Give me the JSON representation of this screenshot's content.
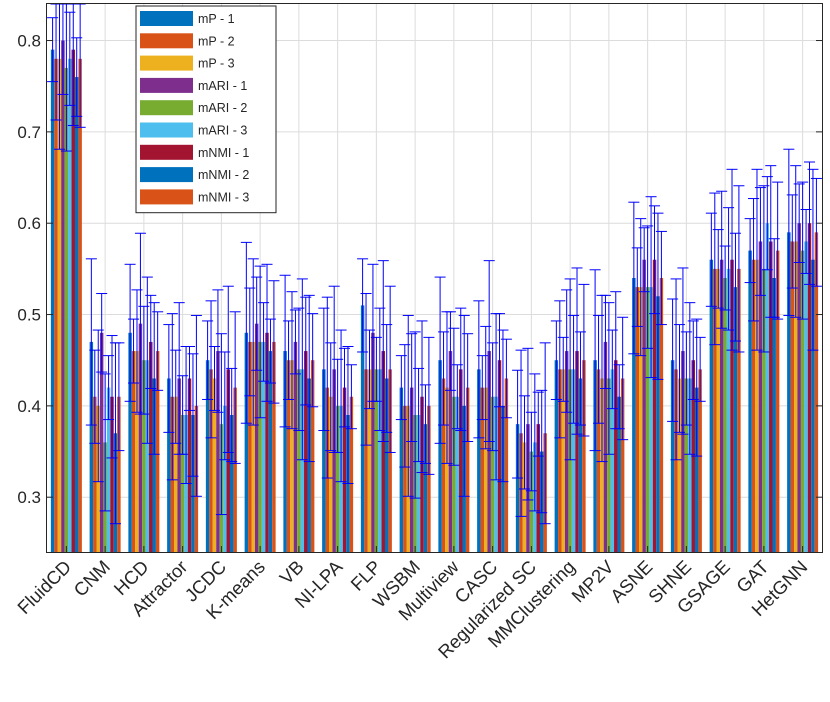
{
  "chart_data": {
    "type": "bar",
    "title": "",
    "xlabel": "",
    "ylabel": "",
    "ylim": [
      0.24,
      0.84
    ],
    "yticks": [
      "0.3",
      "0.4",
      "0.5",
      "0.6",
      "0.7",
      "0.8"
    ],
    "grid": true,
    "legend_position": "top-left",
    "categories": [
      "FluidCD",
      "CNM",
      "HCD",
      "Attractor",
      "JCDC",
      "K-means",
      "VB",
      "NI-LPA",
      "FLP",
      "WSBM",
      "Multiview",
      "CASC",
      "Regularized SC",
      "MMClustering",
      "MP2V",
      "ASNE",
      "SHNE",
      "GSAGE",
      "GAT",
      "HetGNN"
    ],
    "series": [
      {
        "name": "mP - 1",
        "color": "#0072BD",
        "values": [
          0.79,
          0.47,
          0.48,
          0.43,
          0.45,
          0.48,
          0.46,
          0.44,
          0.51,
          0.42,
          0.45,
          0.44,
          0.38,
          0.45,
          0.45,
          0.54,
          0.45,
          0.56,
          0.57,
          0.59
        ]
      },
      {
        "name": "mP - 2",
        "color": "#D95319",
        "values": [
          0.78,
          0.41,
          0.46,
          0.41,
          0.44,
          0.47,
          0.45,
          0.42,
          0.44,
          0.4,
          0.43,
          0.42,
          0.37,
          0.44,
          0.44,
          0.53,
          0.44,
          0.55,
          0.56,
          0.58
        ]
      },
      {
        "name": "mP - 3",
        "color": "#EDB120",
        "values": [
          0.78,
          0.4,
          0.46,
          0.41,
          0.43,
          0.47,
          0.45,
          0.41,
          0.44,
          0.4,
          0.42,
          0.42,
          0.36,
          0.44,
          0.43,
          0.53,
          0.43,
          0.55,
          0.56,
          0.58
        ]
      },
      {
        "name": "mARI - 1",
        "color": "#7E2F8E",
        "values": [
          0.8,
          0.48,
          0.49,
          0.43,
          0.46,
          0.49,
          0.47,
          0.44,
          0.48,
          0.42,
          0.46,
          0.46,
          0.38,
          0.46,
          0.47,
          0.56,
          0.46,
          0.56,
          0.58,
          0.6
        ]
      },
      {
        "name": "mARI - 2",
        "color": "#77AC30",
        "values": [
          0.77,
          0.36,
          0.45,
          0.39,
          0.38,
          0.47,
          0.44,
          0.4,
          0.44,
          0.39,
          0.41,
          0.41,
          0.35,
          0.44,
          0.43,
          0.53,
          0.43,
          0.54,
          0.55,
          0.57
        ]
      },
      {
        "name": "mARI - 3",
        "color": "#4DBEEE",
        "values": [
          0.78,
          0.42,
          0.45,
          0.39,
          0.4,
          0.47,
          0.44,
          0.4,
          0.44,
          0.39,
          0.41,
          0.41,
          0.36,
          0.44,
          0.44,
          0.53,
          0.43,
          0.55,
          0.6,
          0.58
        ]
      },
      {
        "name": "mNMI - 1",
        "color": "#A2142F",
        "values": [
          0.79,
          0.41,
          0.47,
          0.43,
          0.44,
          0.48,
          0.46,
          0.42,
          0.46,
          0.41,
          0.44,
          0.45,
          0.38,
          0.46,
          0.45,
          0.56,
          0.45,
          0.56,
          0.58,
          0.6
        ]
      },
      {
        "name": "mNMI - 2",
        "color": "#0072BD",
        "values": [
          0.76,
          0.37,
          0.43,
          0.39,
          0.39,
          0.46,
          0.43,
          0.39,
          0.43,
          0.38,
          0.4,
          0.4,
          0.35,
          0.43,
          0.41,
          0.52,
          0.42,
          0.53,
          0.54,
          0.56
        ]
      },
      {
        "name": "mNMI - 3",
        "color": "#D95319",
        "values": [
          0.78,
          0.41,
          0.46,
          0.4,
          0.42,
          0.47,
          0.45,
          0.41,
          0.44,
          0.4,
          0.42,
          0.43,
          0.37,
          0.45,
          0.43,
          0.54,
          0.44,
          0.55,
          0.57,
          0.59
        ]
      }
    ]
  }
}
